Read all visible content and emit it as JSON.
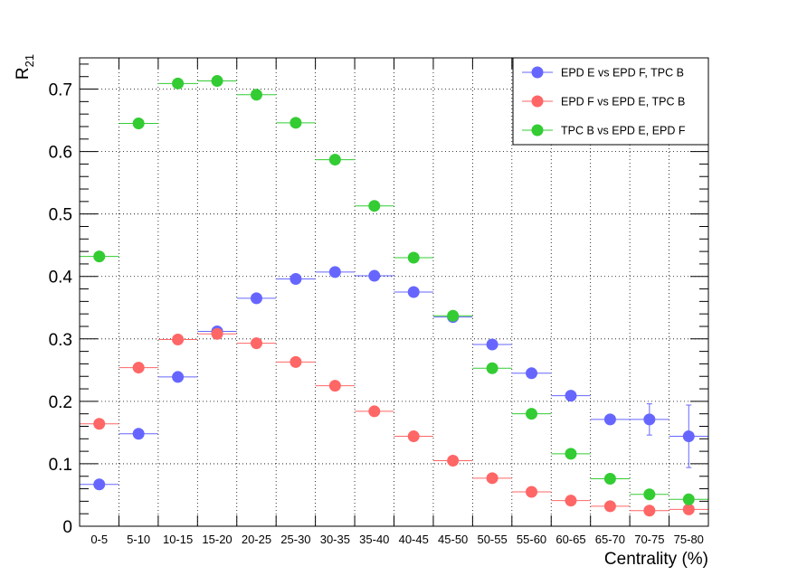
{
  "chart_data": {
    "type": "scatter",
    "categories": [
      "0-5",
      "5-10",
      "10-15",
      "15-20",
      "20-25",
      "25-30",
      "30-35",
      "35-40",
      "40-45",
      "45-50",
      "50-55",
      "55-60",
      "60-65",
      "65-70",
      "70-75",
      "75-80"
    ],
    "xlabel": "Centrality (%)",
    "ylabel_main": "R",
    "ylabel_sub": "21",
    "ylim": [
      0,
      0.75
    ],
    "yticks": [
      0,
      0.1,
      0.2,
      0.3,
      0.4,
      0.5,
      0.6,
      0.7
    ],
    "ytick_labels": [
      "0",
      "0.1",
      "0.2",
      "0.3",
      "0.4",
      "0.5",
      "0.6",
      "0.7"
    ],
    "grid": true,
    "legend_position": "top-right",
    "series": [
      {
        "name": "EPD E vs EPD F, TPC B",
        "color": "#6666ff",
        "values": [
          0.067,
          0.148,
          0.239,
          0.312,
          0.365,
          0.396,
          0.407,
          0.401,
          0.375,
          0.335,
          0.291,
          0.245,
          0.209,
          0.171,
          0.171,
          0.144
        ],
        "errors": [
          0.002,
          0.002,
          0.002,
          0.002,
          0.002,
          0.002,
          0.002,
          0.002,
          0.002,
          0.002,
          0.003,
          0.003,
          0.004,
          0.006,
          0.025,
          0.05
        ]
      },
      {
        "name": "EPD F vs EPD E, TPC B",
        "color": "#ff6666",
        "values": [
          0.164,
          0.254,
          0.299,
          0.308,
          0.293,
          0.263,
          0.225,
          0.184,
          0.144,
          0.105,
          0.077,
          0.055,
          0.041,
          0.032,
          0.025,
          0.027
        ],
        "errors": [
          0.002,
          0.002,
          0.002,
          0.002,
          0.002,
          0.002,
          0.002,
          0.002,
          0.002,
          0.002,
          0.002,
          0.002,
          0.002,
          0.002,
          0.003,
          0.006
        ]
      },
      {
        "name": "TPC B vs EPD E, EPD F",
        "color": "#33cc33",
        "values": [
          0.432,
          0.645,
          0.709,
          0.713,
          0.691,
          0.646,
          0.587,
          0.513,
          0.43,
          0.337,
          0.253,
          0.18,
          0.116,
          0.076,
          0.051,
          0.043
        ],
        "errors": [
          0.002,
          0.002,
          0.002,
          0.002,
          0.002,
          0.002,
          0.002,
          0.002,
          0.002,
          0.002,
          0.002,
          0.002,
          0.002,
          0.003,
          0.004,
          0.008
        ]
      }
    ]
  }
}
